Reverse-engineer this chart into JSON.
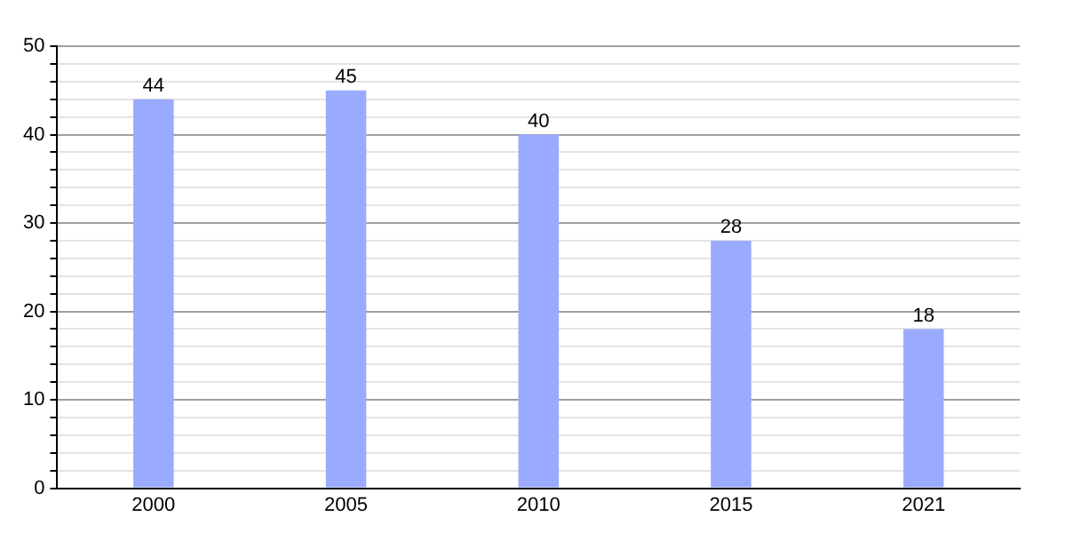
{
  "chart_data": {
    "type": "bar",
    "categories": [
      "2000",
      "2005",
      "2010",
      "2015",
      "2021"
    ],
    "values": [
      44,
      45,
      40,
      28,
      18
    ],
    "color": "#99aaff",
    "data_labels": true,
    "grid": "y",
    "legend": false,
    "ylim": [
      0,
      50
    ],
    "yticks": [
      0,
      {
        "value": 2,
        "label": null
      },
      {
        "value": 4,
        "label": null
      },
      {
        "value": 6,
        "label": null
      },
      {
        "value": 8,
        "label": null
      },
      10,
      {
        "value": 12,
        "label": null
      },
      {
        "value": 14,
        "label": null
      },
      {
        "value": 16,
        "label": null
      },
      {
        "value": 18,
        "label": null
      },
      20,
      {
        "value": 22,
        "label": null
      },
      {
        "value": 24,
        "label": null
      },
      {
        "value": 26,
        "label": null
      },
      {
        "value": 28,
        "label": null
      },
      30,
      {
        "value": 32,
        "label": null
      },
      {
        "value": 34,
        "label": null
      },
      {
        "value": 36,
        "label": null
      },
      {
        "value": 38,
        "label": null
      },
      40,
      {
        "value": 42,
        "label": null
      },
      {
        "value": 44,
        "label": null
      },
      {
        "value": 46,
        "label": null
      },
      {
        "value": 48,
        "label": null
      },
      50
    ]
  }
}
